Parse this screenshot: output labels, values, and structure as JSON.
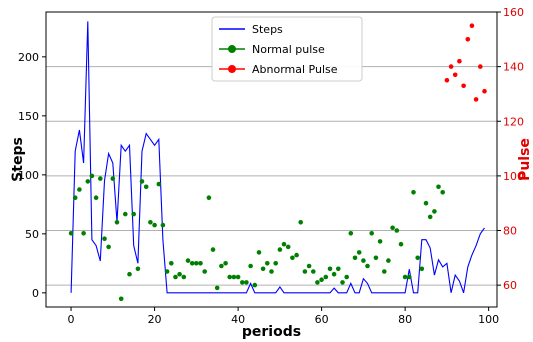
{
  "chart_data": {
    "type": "line+scatter",
    "xlabel": "periods",
    "ylabel_left": "Steps",
    "ylabel_right": "Pulse",
    "xlim": [
      -6,
      102
    ],
    "ylim_left": [
      -12,
      238
    ],
    "ylim_right": [
      52,
      160
    ],
    "xticks": [
      0,
      20,
      40,
      60,
      80,
      100
    ],
    "yticks_left": [
      0,
      50,
      100,
      150,
      200
    ],
    "yticks_right": [
      60,
      80,
      100,
      120,
      140,
      160
    ],
    "grid_right_y": true,
    "legend_position": "top-center",
    "legend": [
      {
        "label": "Steps",
        "kind": "line",
        "color": "#0000ff"
      },
      {
        "label": "Normal pulse",
        "kind": "marker",
        "color": "#008000"
      },
      {
        "label": "Abnormal Pulse",
        "kind": "marker",
        "color": "#ff0000"
      }
    ],
    "steps_series": {
      "name": "Steps",
      "color": "#0000ff",
      "x": [
        0,
        1,
        2,
        3,
        4,
        5,
        6,
        7,
        8,
        9,
        10,
        11,
        12,
        13,
        14,
        15,
        16,
        17,
        18,
        19,
        20,
        21,
        22,
        23,
        24,
        25,
        26,
        27,
        28,
        29,
        30,
        31,
        32,
        33,
        34,
        35,
        36,
        37,
        38,
        39,
        40,
        41,
        42,
        43,
        44,
        45,
        46,
        47,
        48,
        49,
        50,
        51,
        52,
        53,
        54,
        55,
        56,
        57,
        58,
        59,
        60,
        61,
        62,
        63,
        64,
        65,
        66,
        67,
        68,
        69,
        70,
        71,
        72,
        73,
        74,
        75,
        76,
        77,
        78,
        79,
        80,
        81,
        82,
        83,
        84,
        85,
        86,
        87,
        88,
        89,
        90,
        91,
        92,
        93,
        94,
        95,
        96,
        97,
        98,
        99
      ],
      "values": [
        0,
        120,
        138,
        110,
        230,
        45,
        40,
        27,
        95,
        118,
        110,
        60,
        125,
        120,
        125,
        40,
        25,
        120,
        135,
        130,
        125,
        130,
        45,
        0,
        0,
        0,
        0,
        0,
        0,
        0,
        0,
        0,
        0,
        0,
        0,
        0,
        0,
        0,
        0,
        0,
        0,
        0,
        0,
        8,
        0,
        0,
        0,
        0,
        0,
        0,
        5,
        0,
        0,
        0,
        0,
        0,
        0,
        0,
        0,
        0,
        0,
        0,
        0,
        4,
        0,
        0,
        0,
        8,
        0,
        0,
        12,
        8,
        0,
        0,
        0,
        0,
        0,
        0,
        0,
        0,
        0,
        20,
        0,
        0,
        45,
        45,
        38,
        15,
        28,
        22,
        25,
        0,
        15,
        10,
        0,
        22,
        32,
        40,
        50,
        55
      ]
    },
    "normal_pulse": {
      "name": "Normal pulse",
      "color": "#008000",
      "x": [
        0,
        1,
        2,
        3,
        4,
        5,
        6,
        7,
        8,
        9,
        10,
        11,
        12,
        13,
        14,
        15,
        16,
        17,
        18,
        19,
        20,
        21,
        22,
        23,
        24,
        25,
        26,
        27,
        28,
        29,
        30,
        31,
        32,
        33,
        34,
        35,
        36,
        37,
        38,
        39,
        40,
        41,
        42,
        43,
        44,
        45,
        46,
        47,
        48,
        49,
        50,
        51,
        52,
        53,
        54,
        55,
        56,
        57,
        58,
        59,
        60,
        61,
        62,
        63,
        64,
        65,
        66,
        67,
        68,
        69,
        70,
        71,
        72,
        73,
        74,
        75,
        76,
        77,
        78,
        79,
        80,
        81,
        82,
        83,
        84,
        85,
        86,
        87,
        88,
        89
      ],
      "values": [
        79,
        92,
        95,
        79,
        98,
        100,
        92,
        99,
        77,
        74,
        99,
        83,
        55,
        86,
        64,
        86,
        66,
        98,
        96,
        83,
        82,
        97,
        82,
        65,
        68,
        63,
        64,
        63,
        69,
        68,
        68,
        68,
        65,
        92,
        73,
        59,
        67,
        68,
        63,
        63,
        63,
        61,
        61,
        67,
        60,
        72,
        66,
        68,
        65,
        68,
        73,
        75,
        74,
        70,
        71,
        83,
        65,
        67,
        65,
        61,
        62,
        63,
        66,
        64,
        66,
        61,
        63,
        79,
        70,
        72,
        69,
        67,
        79,
        70,
        76,
        65,
        69,
        81,
        80,
        75,
        63,
        63,
        94,
        70,
        66,
        90,
        85,
        87,
        96,
        94
      ]
    },
    "abnormal_pulse": {
      "name": "Abnormal Pulse",
      "color": "#ff0000",
      "x": [
        90,
        91,
        92,
        93,
        94,
        95,
        96,
        97,
        98,
        99
      ],
      "values": [
        135,
        140,
        137,
        142,
        133,
        150,
        155,
        128,
        140,
        131
      ]
    }
  }
}
